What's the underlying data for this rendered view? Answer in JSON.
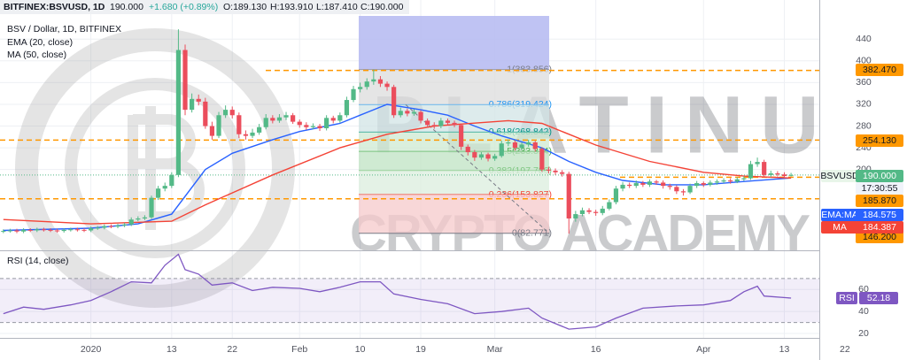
{
  "header": {
    "symbol": "BITFINEX:BSVUSD, 1D",
    "price": "190.000",
    "change": "+1.680 (+0.89%)",
    "open": "O:189.130",
    "high": "H:193.910",
    "low": "L:187.410",
    "close": "C:190.000"
  },
  "watermark": [
    "PLATINUM",
    "CRYPTO ACADEMY"
  ],
  "chart_data": [
    {
      "type": "candlestick",
      "title": "BSV / Dollar, 1D, BITFINEX",
      "up_color": "#53b987",
      "down_color": "#eb4d5c",
      "open": [
        86,
        87,
        88,
        86,
        89,
        88,
        90,
        89,
        88,
        87,
        89,
        90,
        89,
        88,
        92,
        93,
        96,
        95,
        97,
        99,
        108,
        110,
        112,
        148,
        165,
        170,
        190,
        420,
        310,
        330,
        325,
        280,
        262,
        300,
        310,
        300,
        265,
        262,
        268,
        278,
        295,
        290,
        296,
        300,
        288,
        282,
        278,
        280,
        276,
        295,
        290,
        300,
        328,
        348,
        352,
        362,
        366,
        358,
        352,
        300,
        308,
        303,
        306,
        290,
        282,
        280,
        290,
        286,
        282,
        242,
        232,
        222,
        228,
        220,
        225,
        248,
        250,
        240,
        246,
        250,
        238,
        200,
        198,
        195,
        192,
        110,
        118,
        125,
        122,
        120,
        128,
        140,
        165,
        172,
        170,
        175,
        172,
        178,
        176,
        170,
        168,
        160,
        158,
        170,
        175,
        172,
        176,
        178,
        180,
        178,
        182,
        184,
        210,
        214,
        190,
        193,
        191,
        189.13
      ],
      "high": [
        90,
        91,
        91,
        92,
        92,
        93,
        93,
        92,
        91,
        92,
        93,
        93,
        92,
        95,
        96,
        99,
        99,
        100,
        102,
        112,
        114,
        116,
        152,
        170,
        176,
        195,
        458,
        430,
        340,
        338,
        332,
        288,
        306,
        318,
        316,
        305,
        272,
        275,
        284,
        302,
        300,
        302,
        306,
        304,
        292,
        287,
        285,
        284,
        300,
        299,
        305,
        334,
        354,
        360,
        368,
        384,
        372,
        362,
        356,
        314,
        312,
        311,
        309,
        294,
        287,
        295,
        294,
        290,
        285,
        246,
        236,
        232,
        231,
        229,
        253,
        255,
        253,
        250,
        255,
        253,
        241,
        205,
        202,
        199,
        196,
        124,
        130,
        129,
        126,
        133,
        145,
        170,
        177,
        176,
        180,
        179,
        182,
        181,
        180,
        174,
        171,
        164,
        174,
        179,
        178,
        180,
        182,
        184,
        184,
        186,
        188,
        216,
        222,
        218,
        198,
        197,
        195,
        193.91
      ],
      "low": [
        83,
        84,
        83,
        83,
        85,
        85,
        86,
        85,
        84,
        84,
        86,
        86,
        85,
        85,
        89,
        90,
        92,
        92,
        94,
        96,
        105,
        107,
        109,
        144,
        160,
        166,
        186,
        300,
        305,
        318,
        275,
        255,
        258,
        295,
        294,
        258,
        255,
        258,
        264,
        274,
        285,
        286,
        291,
        284,
        277,
        273,
        274,
        271,
        272,
        285,
        286,
        296,
        324,
        342,
        347,
        356,
        352,
        345,
        295,
        296,
        298,
        299,
        285,
        277,
        275,
        276,
        282,
        278,
        236,
        226,
        216,
        218,
        215,
        216,
        222,
        243,
        235,
        236,
        242,
        233,
        196,
        193,
        190,
        187,
        82,
        104,
        114,
        118,
        115,
        116,
        125,
        136,
        160,
        166,
        166,
        168,
        168,
        172,
        165,
        163,
        155,
        152,
        155,
        166,
        168,
        169,
        172,
        175,
        174,
        175,
        179,
        181,
        205,
        186,
        186,
        187,
        184,
        187.41
      ],
      "close": [
        87,
        88,
        86,
        89,
        88,
        90,
        89,
        88,
        87,
        89,
        90,
        89,
        88,
        92,
        93,
        96,
        95,
        97,
        99,
        108,
        110,
        112,
        148,
        165,
        170,
        190,
        420,
        310,
        330,
        325,
        280,
        262,
        300,
        310,
        300,
        265,
        262,
        268,
        278,
        295,
        290,
        296,
        300,
        288,
        282,
        278,
        280,
        276,
        295,
        290,
        300,
        328,
        348,
        352,
        362,
        366,
        358,
        352,
        300,
        308,
        303,
        306,
        290,
        282,
        280,
        290,
        286,
        282,
        242,
        232,
        222,
        228,
        220,
        225,
        248,
        250,
        240,
        246,
        250,
        238,
        200,
        198,
        195,
        192,
        110,
        118,
        125,
        122,
        120,
        128,
        140,
        165,
        172,
        170,
        175,
        172,
        178,
        176,
        170,
        168,
        160,
        158,
        170,
        175,
        172,
        176,
        178,
        180,
        178,
        182,
        184,
        210,
        214,
        190,
        193,
        191,
        188,
        190
      ],
      "xlim": [
        -0.5,
        121.2
      ],
      "xticks": [
        {
          "value": 13,
          "label": "2020"
        },
        {
          "value": 25,
          "label": "13"
        },
        {
          "value": 34,
          "label": "22"
        },
        {
          "value": 44,
          "label": "Feb"
        },
        {
          "value": 53,
          "label": "10"
        },
        {
          "value": 62,
          "label": "19"
        },
        {
          "value": 73,
          "label": "Mar"
        },
        {
          "value": 88,
          "label": "16"
        },
        {
          "value": 104,
          "label": "Apr"
        },
        {
          "value": 116,
          "label": "13"
        },
        {
          "value": 125,
          "label": "22"
        }
      ],
      "ylim": [
        53,
        512
      ],
      "yticks": [
        200,
        240,
        280,
        320,
        360,
        400,
        440
      ],
      "grid": true,
      "series": [
        {
          "name": "EMA (20, close)",
          "tag": "EMA:MA",
          "color": "#2962ff",
          "x": [
            0,
            13,
            20,
            25,
            30,
            34,
            40,
            44,
            50,
            53,
            57,
            62,
            66,
            70,
            74,
            80,
            84,
            88,
            92,
            98,
            104,
            110,
            117
          ],
          "values": [
            88,
            92,
            100,
            118,
            200,
            230,
            255,
            270,
            285,
            300,
            320,
            310,
            300,
            280,
            262,
            240,
            215,
            195,
            180,
            172,
            172,
            178,
            184.575
          ]
        },
        {
          "name": "MA (50, close)",
          "tag": "MA",
          "color": "#f44336",
          "x": [
            0,
            13,
            25,
            30,
            40,
            50,
            57,
            64,
            75,
            80,
            88,
            96,
            104,
            110,
            117
          ],
          "values": [
            108,
            100,
            105,
            135,
            190,
            240,
            265,
            280,
            290,
            285,
            245,
            215,
            195,
            188,
            184.387
          ]
        }
      ],
      "fib": [
        {
          "value": 383.856,
          "label": "1(383.856)",
          "color": "#787b86"
        },
        {
          "value": 319.424,
          "label": "0.786(319.424)",
          "color": "#2196f3"
        },
        {
          "value": 268.842,
          "label": "0.618(268.842)",
          "color": "#009688"
        },
        {
          "value": 233.314,
          "label": "0.5(233.314)",
          "color": "#4caf50"
        },
        {
          "value": 197.786,
          "label": "0.382(197.786)",
          "color": "#81c784"
        },
        {
          "value": 153.827,
          "label": "0.236(153.827)",
          "color": "#f44336"
        },
        {
          "value": 82.771,
          "label": "0(82.771)",
          "color": "#787b86"
        }
      ],
      "levels": [
        {
          "value": 382.47,
          "label": "382.470"
        },
        {
          "value": 254.13,
          "label": "254.130"
        },
        {
          "value": 185.87,
          "label": "185.870"
        },
        {
          "value": 146.2,
          "label": "146.200"
        }
      ],
      "level_color": "#ff9800",
      "last_price": {
        "name": "BSVUSD",
        "value": 190,
        "label": "190.000",
        "color": "#53b987"
      },
      "countdown": "17:30:55"
    },
    {
      "type": "line",
      "title": "RSI (14, close)",
      "series": [
        {
          "name": "RSI",
          "color": "#7e57c2",
          "x": [
            0,
            3,
            6,
            10,
            13,
            16,
            19,
            22,
            24,
            26,
            27,
            29,
            31,
            34,
            37,
            40,
            44,
            47,
            50,
            53,
            56,
            58,
            62,
            66,
            70,
            74,
            78,
            80,
            84,
            88,
            91,
            95,
            100,
            104,
            108,
            110,
            112,
            113,
            117
          ],
          "values": [
            38,
            44,
            42,
            46,
            50,
            58,
            67,
            66,
            82,
            92,
            78,
            74,
            64,
            66,
            59,
            62,
            61,
            58,
            62,
            67,
            67,
            56,
            51,
            47,
            38,
            40,
            43,
            34,
            24,
            26,
            34,
            43,
            45,
            46,
            50,
            58,
            63,
            54,
            52.18
          ]
        }
      ],
      "ylim": [
        16,
        94
      ],
      "yticks": [
        20,
        40,
        60
      ],
      "bands": [
        30,
        70
      ]
    }
  ]
}
